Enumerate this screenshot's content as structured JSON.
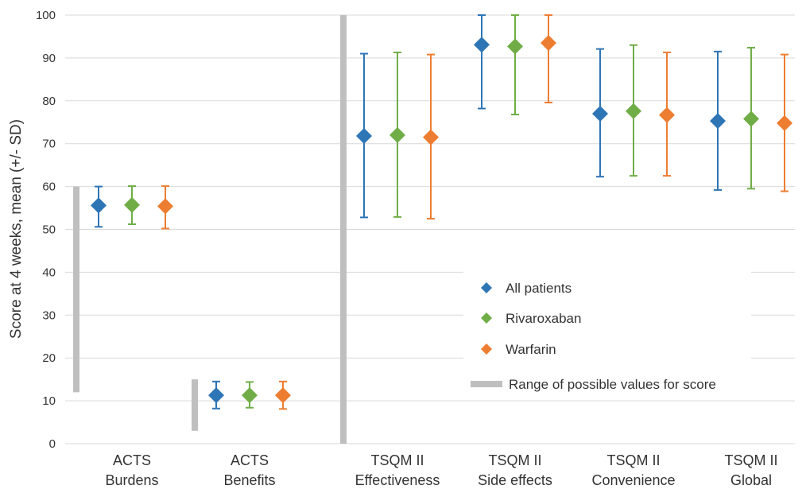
{
  "chart_data": {
    "type": "scatter",
    "title": "",
    "ylabel": "Score at 4 weeks, mean (+/- SD)",
    "xlabel": "",
    "ylim": [
      0,
      100
    ],
    "yticks": [
      0,
      10,
      20,
      30,
      40,
      50,
      60,
      70,
      80,
      90,
      100
    ],
    "grid": true,
    "legend_position": "center-right",
    "categories": [
      [
        "ACTS",
        "Burdens"
      ],
      [
        "ACTS",
        "Benefits"
      ],
      [
        "TSQM II",
        "Effectiveness"
      ],
      [
        "TSQM II",
        "Side effects"
      ],
      [
        "TSQM II",
        "Convenience"
      ],
      [
        "TSQM II",
        "Global"
      ]
    ],
    "series": [
      {
        "name": "All patients",
        "color": "#2e75b6",
        "means": [
          55.6,
          11.3,
          71.8,
          93.1,
          77.0,
          75.3
        ],
        "lower": [
          50.6,
          8.2,
          52.8,
          78.2,
          62.3,
          59.2
        ],
        "upper": [
          60.0,
          14.5,
          91.0,
          100.0,
          92.1,
          91.5
        ]
      },
      {
        "name": "Rivaroxaban",
        "color": "#70ad47",
        "means": [
          55.7,
          11.3,
          72.0,
          92.7,
          77.6,
          75.8
        ],
        "lower": [
          51.2,
          8.4,
          52.9,
          76.8,
          62.5,
          59.5
        ],
        "upper": [
          60.1,
          14.4,
          91.3,
          100.0,
          93.0,
          92.4
        ]
      },
      {
        "name": "Warfarin",
        "color": "#ed7d31",
        "means": [
          55.4,
          11.3,
          71.5,
          93.5,
          76.7,
          74.8
        ],
        "lower": [
          50.2,
          8.1,
          52.5,
          79.6,
          62.5,
          58.9
        ],
        "upper": [
          60.1,
          14.5,
          90.8,
          100.0,
          91.3,
          90.8
        ]
      }
    ],
    "possible_range": {
      "name": "Range of possible values for score",
      "color": "#bfbfbf",
      "ranges": [
        [
          12,
          60
        ],
        [
          3,
          15
        ],
        [
          0,
          100
        ],
        [
          0,
          100
        ],
        [
          0,
          100
        ],
        [
          0,
          100
        ]
      ],
      "shown_for": [
        0,
        1,
        2
      ]
    }
  }
}
